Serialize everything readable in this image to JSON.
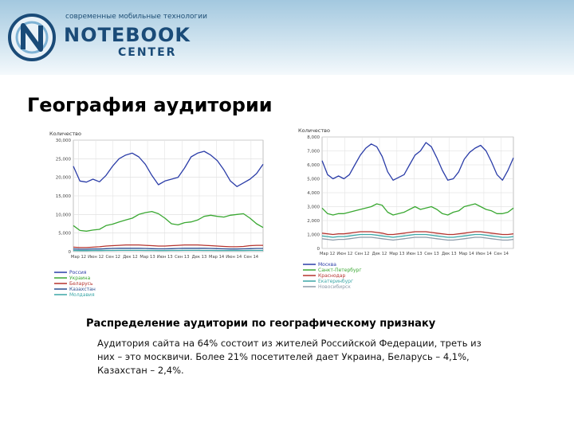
{
  "header": {
    "logo_tagline": "современные мобильные технологии",
    "logo_word1": "NOTEBOOK",
    "logo_word2": "CENTER"
  },
  "page_title": "География аудитории",
  "section_subtitle": "Распределение аудитории по географическому признаку",
  "body_text": "Аудитория сайта на 64% состоит из жителей Российской Федерации, треть из них – это москвичи. Более 21% посетителей дает Украина, Беларусь – 4,1%, Казахстан – 2,4%.",
  "colors": {
    "header_top": "#a3c8df",
    "logo_blue": "#1a4b78",
    "series_blue": "#2b3da8",
    "series_green": "#3aa832",
    "series_red": "#b5332e",
    "series_darkblue": "#2a4d8f",
    "series_teal": "#3aa7a7",
    "series_gray": "#8c9aa8"
  },
  "chart_data": [
    {
      "type": "line",
      "ylabel": "Количество",
      "ylim": [
        0,
        30000
      ],
      "yticks": [
        "30,000",
        "25,000",
        "20,000",
        "15,000",
        "10,000",
        "5,000",
        "0"
      ],
      "xticks": [
        "Мар 12",
        "Июн 12",
        "Сен 12",
        "Дек 12",
        "Мар 13",
        "Июн 13",
        "Сен 13",
        "Дек 13",
        "Мар 14",
        "Июн 14",
        "Сен 14"
      ],
      "grid": true,
      "legend_position": "bottom",
      "series": [
        {
          "name": "Россия",
          "color": "#2b3da8",
          "values": [
            23000,
            19000,
            18700,
            19500,
            18800,
            20500,
            23000,
            25000,
            26000,
            26500,
            25500,
            23500,
            20500,
            18000,
            19000,
            19500,
            20000,
            22500,
            25500,
            26500,
            27000,
            26000,
            24500,
            22000,
            19000,
            17500,
            18500,
            19500,
            21000,
            23500
          ]
        },
        {
          "name": "Украина",
          "color": "#3aa832",
          "values": [
            7000,
            5700,
            5500,
            5800,
            6000,
            7000,
            7400,
            8000,
            8500,
            9000,
            10000,
            10500,
            10800,
            10200,
            9000,
            7500,
            7200,
            7800,
            8000,
            8500,
            9500,
            9800,
            9500,
            9300,
            9800,
            10000,
            10200,
            9000,
            7500,
            6500
          ]
        },
        {
          "name": "Беларусь",
          "color": "#b5332e",
          "values": [
            1200,
            1100,
            1100,
            1200,
            1300,
            1500,
            1600,
            1700,
            1800,
            1800,
            1800,
            1700,
            1600,
            1500,
            1500,
            1600,
            1700,
            1800,
            1800,
            1800,
            1700,
            1600,
            1500,
            1400,
            1300,
            1300,
            1400,
            1600,
            1700,
            1700
          ]
        },
        {
          "name": "Казахстан",
          "color": "#2a4d8f",
          "values": [
            700,
            650,
            650,
            700,
            700,
            800,
            850,
            900,
            900,
            900,
            900,
            850,
            800,
            750,
            750,
            800,
            850,
            900,
            900,
            900,
            900,
            850,
            800,
            750,
            700,
            700,
            750,
            800,
            850,
            850
          ]
        },
        {
          "name": "Молдавия",
          "color": "#3aa7a7",
          "values": [
            300,
            280,
            280,
            300,
            300,
            320,
            330,
            340,
            340,
            340,
            340,
            330,
            320,
            310,
            310,
            320,
            330,
            340,
            340,
            340,
            330,
            320,
            310,
            300,
            300,
            300,
            310,
            320,
            330,
            330
          ]
        }
      ]
    },
    {
      "type": "line",
      "ylabel": "Количество",
      "ylim": [
        0,
        8000
      ],
      "yticks": [
        "8,000",
        "7,000",
        "6,000",
        "5,000",
        "4,000",
        "3,000",
        "2,000",
        "1,000",
        "0"
      ],
      "xticks": [
        "Мар 12",
        "Июн 12",
        "Сен 12",
        "Дек 12",
        "Мар 13",
        "Июн 13",
        "Сен 13",
        "Дек 13",
        "Мар 14",
        "Июн 14",
        "Сен 14"
      ],
      "grid": true,
      "legend_position": "bottom",
      "series": [
        {
          "name": "Москва",
          "color": "#2b3da8",
          "values": [
            6300,
            5300,
            5000,
            5200,
            5000,
            5300,
            6000,
            6700,
            7200,
            7500,
            7300,
            6600,
            5500,
            4900,
            5100,
            5300,
            6000,
            6700,
            7000,
            7600,
            7300,
            6500,
            5600,
            4900,
            5000,
            5500,
            6400,
            6900,
            7200,
            7400,
            7000,
            6200,
            5300,
            4900,
            5600,
            6500
          ]
        },
        {
          "name": "Санкт-Петербург",
          "color": "#3aa832",
          "values": [
            2900,
            2500,
            2400,
            2500,
            2500,
            2600,
            2700,
            2800,
            2900,
            3000,
            3200,
            3100,
            2600,
            2400,
            2500,
            2600,
            2800,
            3000,
            2800,
            2900,
            3000,
            2800,
            2500,
            2400,
            2600,
            2700,
            3000,
            3100,
            3200,
            3000,
            2800,
            2700,
            2500,
            2500,
            2600,
            2900
          ]
        },
        {
          "name": "Краснодар",
          "color": "#b5332e",
          "values": [
            1100,
            1050,
            1000,
            1050,
            1050,
            1100,
            1150,
            1200,
            1200,
            1200,
            1150,
            1100,
            1000,
            1000,
            1050,
            1100,
            1150,
            1200,
            1200,
            1200,
            1150,
            1100,
            1050,
            1000,
            1000,
            1050,
            1100,
            1150,
            1200,
            1200,
            1150,
            1100,
            1050,
            1000,
            1000,
            1050
          ]
        },
        {
          "name": "Екатеринбург",
          "color": "#3aa7a7",
          "values": [
            900,
            850,
            800,
            850,
            850,
            900,
            950,
            1000,
            1000,
            1000,
            950,
            900,
            850,
            800,
            850,
            900,
            950,
            1000,
            1000,
            1000,
            950,
            900,
            850,
            800,
            800,
            850,
            900,
            950,
            1000,
            1000,
            950,
            900,
            850,
            800,
            800,
            850
          ]
        },
        {
          "name": "Новосибирск",
          "color": "#8c9aa8",
          "values": [
            700,
            650,
            600,
            650,
            650,
            700,
            750,
            800,
            800,
            800,
            750,
            700,
            650,
            600,
            650,
            700,
            750,
            800,
            800,
            800,
            750,
            700,
            650,
            600,
            600,
            650,
            700,
            750,
            800,
            800,
            750,
            700,
            650,
            600,
            600,
            650
          ]
        }
      ]
    }
  ]
}
